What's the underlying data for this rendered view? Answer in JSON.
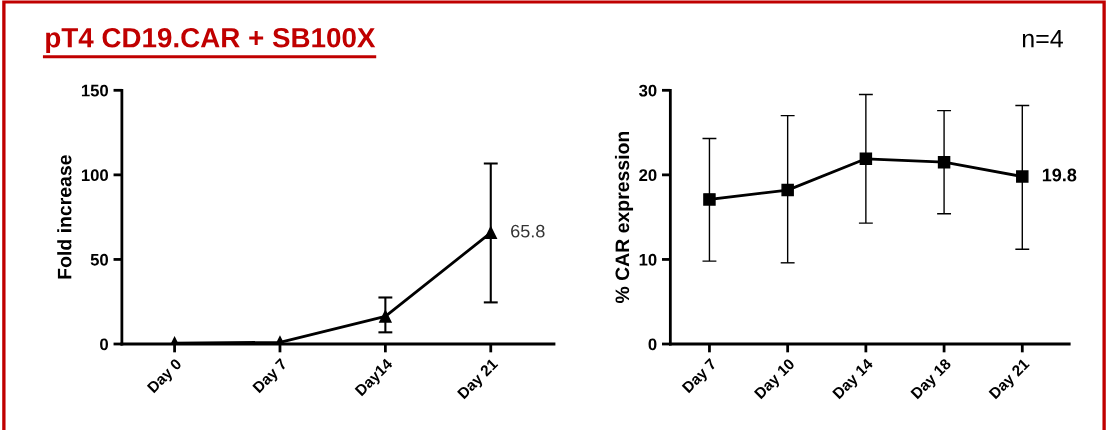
{
  "chart_data": [
    {
      "type": "line",
      "title": "pT4 CD19.CAR + SB100X",
      "ylabel": "Fold increase",
      "categories": [
        "Day 0",
        "Day 7",
        "Day14",
        "Day 21"
      ],
      "series": [
        {
          "color": "#000000",
          "values": [
            0.5,
            1,
            16.3,
            65.8
          ],
          "errors": [
            null,
            null,
            [
              6.9,
              27.5
            ],
            [
              24.6,
              106.7
            ]
          ],
          "value_labels": [
            null,
            null,
            null,
            "65.8"
          ]
        }
      ],
      "ylim": [
        0,
        150
      ],
      "yticks": [
        0,
        50,
        100,
        150
      ],
      "marker": "triangle",
      "grid": false,
      "legend": false
    },
    {
      "type": "line",
      "ylabel": "% CAR expression",
      "annotations": [
        "n=4"
      ],
      "categories": [
        "Day 7",
        "Day 10",
        "Day 14",
        "Day 18",
        "Day 21"
      ],
      "series": [
        {
          "color": "#000000",
          "values": [
            17.1,
            18.2,
            21.9,
            21.5,
            19.8
          ],
          "errors": [
            [
              9.8,
              24.3
            ],
            [
              9.6,
              27.0
            ],
            [
              14.3,
              29.5
            ],
            [
              15.4,
              27.6
            ],
            [
              11.2,
              28.2
            ]
          ],
          "value_labels": [
            null,
            null,
            null,
            null,
            "19.8"
          ]
        }
      ],
      "ylim": [
        0,
        30
      ],
      "yticks": [
        0,
        10,
        20,
        30
      ],
      "marker": "square",
      "grid": false,
      "legend": false
    }
  ]
}
